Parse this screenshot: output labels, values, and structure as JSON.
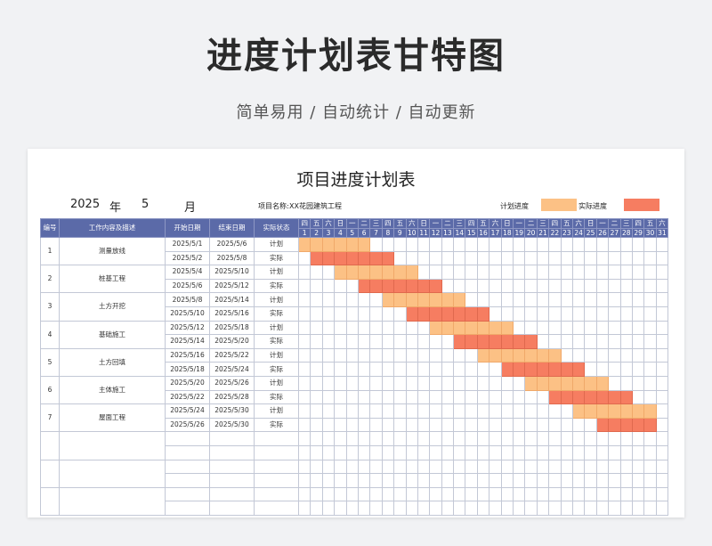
{
  "page": {
    "title": "进度计划表甘特图",
    "subtitle": "简单易用 / 自动统计 / 自动更新"
  },
  "sheet": {
    "title": "项目进度计划表",
    "year": "2025",
    "year_unit": "年",
    "month": "5",
    "month_unit": "月",
    "project_label": "项目名称:",
    "project_name": "XX花园建筑工程",
    "legend": {
      "plan_label": "计划进度",
      "actual_label": "实际进度",
      "plan_color": "#fcc185",
      "actual_color": "#f67d61"
    },
    "headers": [
      "编号",
      "工作内容及描述",
      "开始日期",
      "结束日期",
      "实际状态"
    ],
    "weekdays": [
      "四",
      "五",
      "六",
      "日",
      "一",
      "二",
      "三",
      "四",
      "五",
      "六",
      "日",
      "一",
      "二",
      "三",
      "四",
      "五",
      "六",
      "日",
      "一",
      "二",
      "三",
      "四",
      "五",
      "六",
      "日",
      "一",
      "二",
      "三",
      "四",
      "五",
      "六"
    ],
    "days": [
      "1",
      "2",
      "3",
      "4",
      "5",
      "6",
      "7",
      "8",
      "9",
      "10",
      "11",
      "12",
      "13",
      "14",
      "15",
      "16",
      "17",
      "18",
      "19",
      "20",
      "21",
      "22",
      "23",
      "24",
      "25",
      "26",
      "27",
      "28",
      "29",
      "30",
      "31"
    ],
    "tasks": [
      {
        "no": "1",
        "name": "测量放线",
        "plan": {
          "start": "2025/5/1",
          "end": "2025/5/6",
          "status": "计划",
          "from": 1,
          "to": 6
        },
        "actual": {
          "start": "2025/5/2",
          "end": "2025/5/8",
          "status": "实际",
          "from": 2,
          "to": 8
        }
      },
      {
        "no": "2",
        "name": "桩基工程",
        "plan": {
          "start": "2025/5/4",
          "end": "2025/5/10",
          "status": "计划",
          "from": 4,
          "to": 10
        },
        "actual": {
          "start": "2025/5/6",
          "end": "2025/5/12",
          "status": "实际",
          "from": 6,
          "to": 12
        }
      },
      {
        "no": "3",
        "name": "土方开挖",
        "plan": {
          "start": "2025/5/8",
          "end": "2025/5/14",
          "status": "计划",
          "from": 8,
          "to": 14
        },
        "actual": {
          "start": "2025/5/10",
          "end": "2025/5/16",
          "status": "实际",
          "from": 10,
          "to": 16
        }
      },
      {
        "no": "4",
        "name": "基础施工",
        "plan": {
          "start": "2025/5/12",
          "end": "2025/5/18",
          "status": "计划",
          "from": 12,
          "to": 18
        },
        "actual": {
          "start": "2025/5/14",
          "end": "2025/5/20",
          "status": "实际",
          "from": 14,
          "to": 20
        }
      },
      {
        "no": "5",
        "name": "土方回填",
        "plan": {
          "start": "2025/5/16",
          "end": "2025/5/22",
          "status": "计划",
          "from": 16,
          "to": 22
        },
        "actual": {
          "start": "2025/5/18",
          "end": "2025/5/24",
          "status": "实际",
          "from": 18,
          "to": 24
        }
      },
      {
        "no": "6",
        "name": "主体施工",
        "plan": {
          "start": "2025/5/20",
          "end": "2025/5/26",
          "status": "计划",
          "from": 20,
          "to": 26
        },
        "actual": {
          "start": "2025/5/22",
          "end": "2025/5/28",
          "status": "实际",
          "from": 22,
          "to": 28
        }
      },
      {
        "no": "7",
        "name": "屋面工程",
        "plan": {
          "start": "2025/5/24",
          "end": "2025/5/30",
          "status": "计划",
          "from": 24,
          "to": 30
        },
        "actual": {
          "start": "2025/5/26",
          "end": "2025/5/30",
          "status": "实际",
          "from": 26,
          "to": 30
        }
      }
    ],
    "empty_task_count": 3
  }
}
